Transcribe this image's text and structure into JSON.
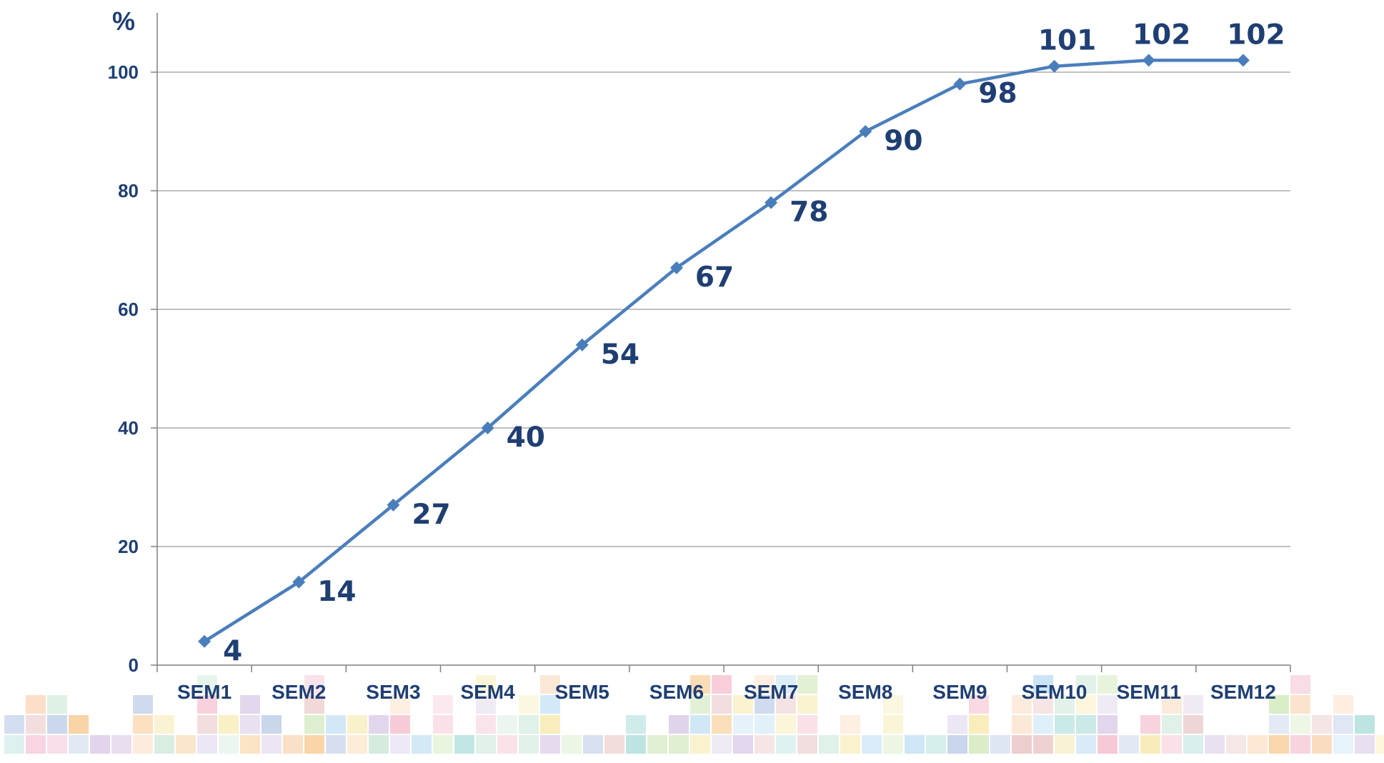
{
  "chart_data": {
    "type": "line",
    "title": "",
    "xlabel": "",
    "ylabel": "%",
    "ylim": [
      0,
      100
    ],
    "yticks": [
      0,
      20,
      40,
      60,
      80,
      100
    ],
    "grid": true,
    "categories": [
      "SEM1",
      "SEM2",
      "SEM3",
      "SEM4",
      "SEM5",
      "SEM6",
      "SEM7",
      "SEM8",
      "SEM9",
      "SEM10",
      "SEM11",
      "SEM12"
    ],
    "series": [
      {
        "values": [
          4,
          14,
          27,
          40,
          54,
          67,
          78,
          90,
          98,
          101,
          102,
          102
        ],
        "data_labels": [
          "4",
          "14",
          "27",
          "40",
          "54",
          "67",
          "78",
          "90",
          "98",
          "101",
          "102",
          "102"
        ],
        "color": "#4A7EBB",
        "marker": "diamond"
      }
    ]
  },
  "colors": {
    "text": "#1F3F73",
    "line": "#4A7EBB",
    "grid": "#9A9A9A",
    "axis": "#808080"
  },
  "decor": {
    "palette": [
      "#F4C7D8",
      "#C9E6D4",
      "#AFC2E3",
      "#F9D2B0",
      "#F6E8A8",
      "#D8C8E6",
      "#A9DCD8",
      "#E7C0C0",
      "#BCDDF2",
      "#F3B9C9",
      "#CFE8B9",
      "#F7C98E"
    ]
  }
}
